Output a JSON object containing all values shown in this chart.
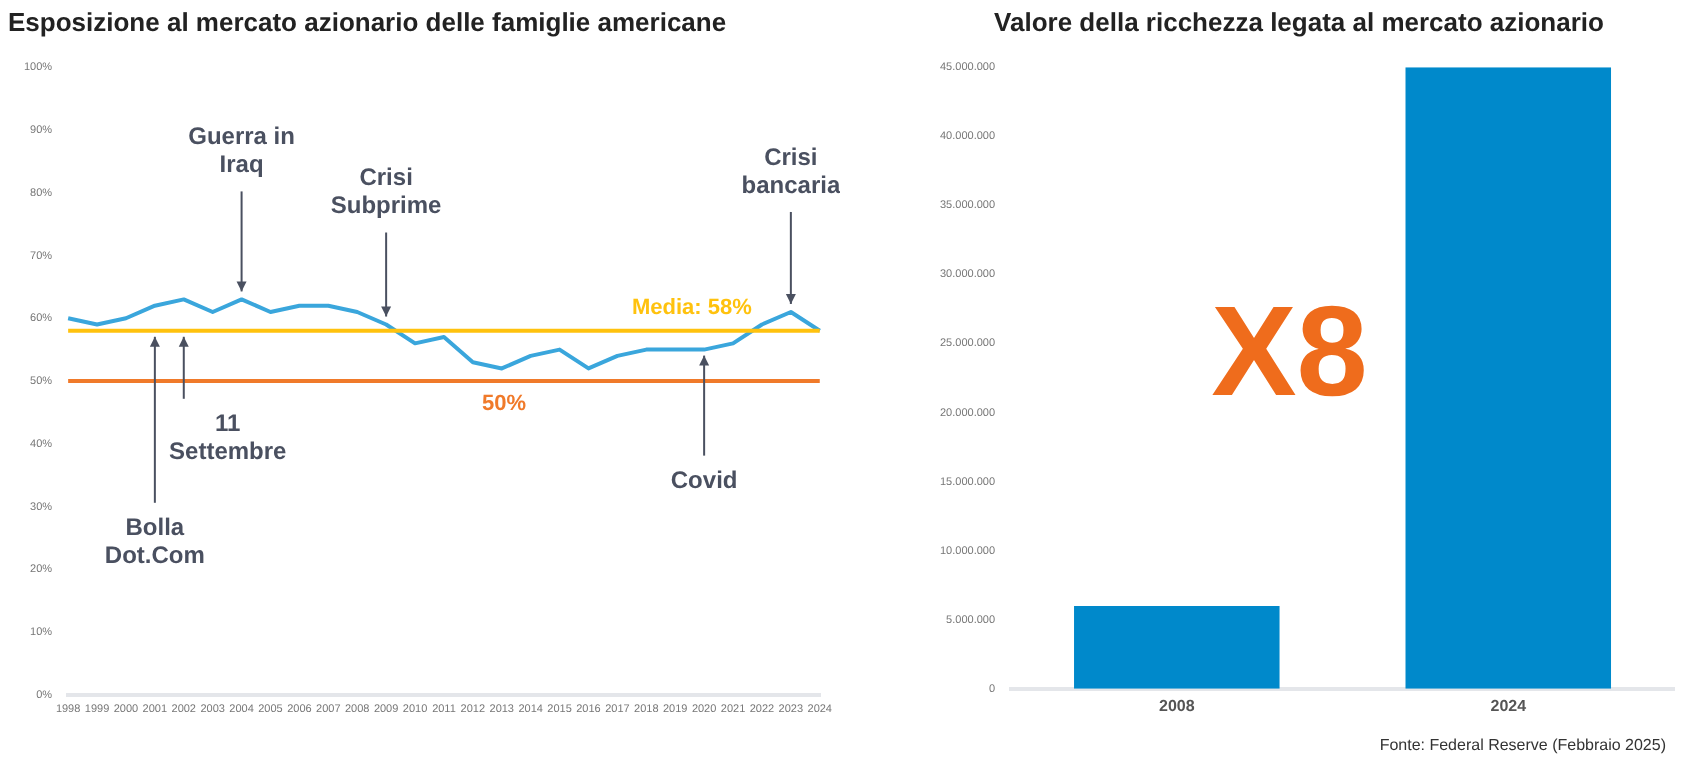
{
  "chart_data": [
    {
      "type": "line",
      "title": "Esposizione al mercato azionario delle famiglie americane",
      "categories": [
        "1998",
        "1999",
        "2000",
        "2001",
        "2002",
        "2003",
        "2004",
        "2005",
        "2006",
        "2007",
        "2008",
        "2009",
        "2010",
        "2011",
        "2012",
        "2013",
        "2014",
        "2015",
        "2016",
        "2017",
        "2018",
        "2019",
        "2020",
        "2021",
        "2022",
        "2023",
        "2024"
      ],
      "series": [
        {
          "color": "#3aa6dc",
          "values": [
            60,
            59,
            60,
            62,
            63,
            61,
            63,
            61,
            62,
            62,
            61,
            59,
            56,
            57,
            53,
            52,
            54,
            55,
            52,
            54,
            55,
            55,
            55,
            56,
            59,
            61,
            58
          ]
        }
      ],
      "ylim": [
        0,
        100
      ],
      "yticks": [
        {
          "value": 0,
          "label": "0%"
        },
        {
          "value": 10,
          "label": "10%"
        },
        {
          "value": 20,
          "label": "20%"
        },
        {
          "value": 30,
          "label": "30%"
        },
        {
          "value": 40,
          "label": "40%"
        },
        {
          "value": 50,
          "label": "50%"
        },
        {
          "value": 60,
          "label": "60%"
        },
        {
          "value": 70,
          "label": "70%"
        },
        {
          "value": 80,
          "label": "80%"
        },
        {
          "value": 90,
          "label": "90%"
        },
        {
          "value": 100,
          "label": "100%"
        }
      ],
      "ref_lines": [
        {
          "axis": "y",
          "value": 58,
          "label": "Media: 58%",
          "color": "#ffc20e"
        },
        {
          "axis": "y",
          "value": 50,
          "label": "50%",
          "color": "#f07a2a"
        }
      ],
      "annotations": [
        {
          "text": "Bolla Dot.Com",
          "x": "2001",
          "y": 58
        },
        {
          "text": "11 Settembre",
          "x": "2002",
          "y": 58
        },
        {
          "text": "Guerra in Iraq",
          "x": "2004",
          "y": 63
        },
        {
          "text": "Crisi Subprime",
          "x": "2009",
          "y": 59
        },
        {
          "text": "Covid",
          "x": "2020",
          "y": 55
        },
        {
          "text": "Crisi bancaria",
          "x": "2023",
          "y": 61
        }
      ],
      "grid": false,
      "legend": false,
      "marker": "none",
      "line_style": "solid"
    },
    {
      "type": "bar",
      "title": "Valore della ricchezza legata al mercato azionario",
      "categories": [
        "2008",
        "2024"
      ],
      "values": [
        6000000,
        45000000
      ],
      "color": "#0089cb",
      "ylim": [
        0,
        45000000
      ],
      "yticks": [
        {
          "value": 0,
          "label": "0"
        },
        {
          "value": 5000000,
          "label": "5.000.000"
        },
        {
          "value": 10000000,
          "label": "10.000.000"
        },
        {
          "value": 15000000,
          "label": "15.000.000"
        },
        {
          "value": 20000000,
          "label": "20.000.000"
        },
        {
          "value": 25000000,
          "label": "25.000.000"
        },
        {
          "value": 30000000,
          "label": "30.000.000"
        },
        {
          "value": 35000000,
          "label": "35.000.000"
        },
        {
          "value": 40000000,
          "label": "40.000.000"
        },
        {
          "value": 45000000,
          "label": "45.000.000"
        }
      ],
      "annotations": [
        "X8",
        "Fonte: Federal Reserve (Febbraio 2025)"
      ],
      "grid": false,
      "legend": false
    }
  ]
}
